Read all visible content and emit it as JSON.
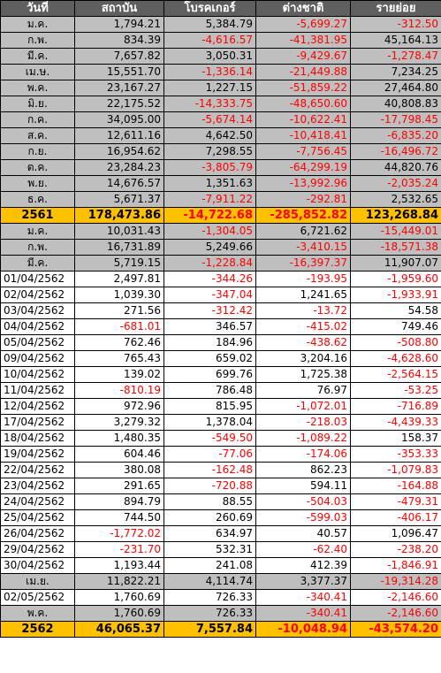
{
  "columns": [
    "วันที่",
    "สถาบัน",
    "โบรคเกอร์",
    "ต่างชาติ",
    "รายย่อย"
  ],
  "rows": [
    {
      "type": "month",
      "cells": [
        "ม.ค.",
        "1,794.21",
        "5,384.79",
        "-5,699.27",
        "-312.50"
      ]
    },
    {
      "type": "month",
      "cells": [
        "ก.พ.",
        "834.39",
        "-4,616.57",
        "-41,381.95",
        "45,164.13"
      ]
    },
    {
      "type": "month",
      "cells": [
        "มี.ค.",
        "7,657.82",
        "3,050.31",
        "-9,429.67",
        "-1,278.47"
      ]
    },
    {
      "type": "month",
      "cells": [
        "เม.ษ.",
        "15,551.70",
        "-1,336.14",
        "-21,449.88",
        "7,234.25"
      ]
    },
    {
      "type": "month",
      "cells": [
        "พ.ค.",
        "23,167.27",
        "1,227.15",
        "-51,859.22",
        "27,464.80"
      ]
    },
    {
      "type": "month",
      "cells": [
        "มิ.ย.",
        "22,175.52",
        "-14,333.75",
        "-48,650.60",
        "40,808.83"
      ]
    },
    {
      "type": "month",
      "cells": [
        "ก.ค.",
        "34,095.00",
        "-5,674.14",
        "-10,622.41",
        "-17,798.45"
      ]
    },
    {
      "type": "month",
      "cells": [
        "ส.ค.",
        "12,611.16",
        "4,642.50",
        "-10,418.41",
        "-6,835.20"
      ]
    },
    {
      "type": "month",
      "cells": [
        "ก.ย.",
        "16,954.62",
        "7,298.55",
        "-7,756.45",
        "-16,496.72"
      ]
    },
    {
      "type": "month",
      "cells": [
        "ต.ค.",
        "23,284.23",
        "-3,805.79",
        "-64,299.19",
        "44,820.76"
      ]
    },
    {
      "type": "month",
      "cells": [
        "พ.ย.",
        "14,676.57",
        "1,351.63",
        "-13,992.96",
        "-2,035.24"
      ]
    },
    {
      "type": "month",
      "cells": [
        "ธ.ค.",
        "5,671.37",
        "-7,911.22",
        "-292.81",
        "2,532.65"
      ]
    },
    {
      "type": "total",
      "cells": [
        "2561",
        "178,473.86",
        "-14,722.68",
        "-285,852.82",
        "123,268.84"
      ]
    },
    {
      "type": "month",
      "cells": [
        "ม.ค.",
        "10,031.43",
        "-1,304.05",
        "6,721.62",
        "-15,449.01"
      ]
    },
    {
      "type": "month",
      "cells": [
        "ก.พ.",
        "16,731.89",
        "5,249.66",
        "-3,410.15",
        "-18,571.38"
      ]
    },
    {
      "type": "month",
      "cells": [
        "มี.ค.",
        "5,719.15",
        "-1,228.84",
        "-16,397.37",
        "11,907.07"
      ]
    },
    {
      "type": "day",
      "cells": [
        "01/04/2562",
        "2,497.81",
        "-344.26",
        "-193.95",
        "-1,959.60"
      ]
    },
    {
      "type": "day",
      "cells": [
        "02/04/2562",
        "1,039.30",
        "-347.04",
        "1,241.65",
        "-1,933.91"
      ]
    },
    {
      "type": "day",
      "cells": [
        "03/04/2562",
        "271.56",
        "-312.42",
        "-13.72",
        "54.58"
      ]
    },
    {
      "type": "day",
      "cells": [
        "04/04/2562",
        "-681.01",
        "346.57",
        "-415.02",
        "749.46"
      ]
    },
    {
      "type": "day",
      "cells": [
        "05/04/2562",
        "762.46",
        "184.96",
        "-438.62",
        "-508.80"
      ]
    },
    {
      "type": "day",
      "cells": [
        "09/04/2562",
        "765.43",
        "659.02",
        "3,204.16",
        "-4,628.60"
      ]
    },
    {
      "type": "day",
      "cells": [
        "10/04/2562",
        "139.02",
        "699.76",
        "1,725.38",
        "-2,564.15"
      ]
    },
    {
      "type": "day",
      "cells": [
        "11/04/2562",
        "-810.19",
        "786.48",
        "76.97",
        "-53.25"
      ]
    },
    {
      "type": "day",
      "cells": [
        "12/04/2562",
        "972.96",
        "815.95",
        "-1,072.01",
        "-716.89"
      ]
    },
    {
      "type": "day",
      "cells": [
        "17/04/2562",
        "3,279.32",
        "1,378.04",
        "-218.03",
        "-4,439.33"
      ]
    },
    {
      "type": "day",
      "cells": [
        "18/04/2562",
        "1,480.35",
        "-549.50",
        "-1,089.22",
        "158.37"
      ]
    },
    {
      "type": "day",
      "cells": [
        "19/04/2562",
        "604.46",
        "-77.06",
        "-174.06",
        "-353.33"
      ]
    },
    {
      "type": "day",
      "cells": [
        "22/04/2562",
        "380.08",
        "-162.48",
        "862.23",
        "-1,079.83"
      ]
    },
    {
      "type": "day",
      "cells": [
        "23/04/2562",
        "291.65",
        "-720.88",
        "594.11",
        "-164.88"
      ]
    },
    {
      "type": "day",
      "cells": [
        "24/04/2562",
        "894.79",
        "88.55",
        "-504.03",
        "-479.31"
      ]
    },
    {
      "type": "day",
      "cells": [
        "25/04/2562",
        "744.50",
        "260.69",
        "-599.03",
        "-406.17"
      ]
    },
    {
      "type": "day",
      "cells": [
        "26/04/2562",
        "-1,772.02",
        "634.97",
        "40.57",
        "1,096.47"
      ]
    },
    {
      "type": "day",
      "cells": [
        "29/04/2562",
        "-231.70",
        "532.31",
        "-62.40",
        "-238.20"
      ]
    },
    {
      "type": "day",
      "cells": [
        "30/04/2562",
        "1,193.44",
        "241.08",
        "412.39",
        "-1,846.91"
      ]
    },
    {
      "type": "month",
      "cells": [
        "เม.ย.",
        "11,822.21",
        "4,114.74",
        "3,377.37",
        "-19,314.28"
      ]
    },
    {
      "type": "day",
      "cells": [
        "02/05/2562",
        "1,760.69",
        "726.33",
        "-340.41",
        "-2,146.60"
      ]
    },
    {
      "type": "month",
      "cells": [
        "พ.ค.",
        "1,760.69",
        "726.33",
        "-340.41",
        "-2,146.60"
      ]
    },
    {
      "type": "total",
      "cells": [
        "2562",
        "46,065.37",
        "7,557.84",
        "-10,048.94",
        "-43,574.20"
      ]
    }
  ],
  "colors": {
    "header": "#5f5f5f",
    "month_row": "#bfbfbf",
    "total_row": "#ffc000",
    "negative": "#ff0000"
  }
}
